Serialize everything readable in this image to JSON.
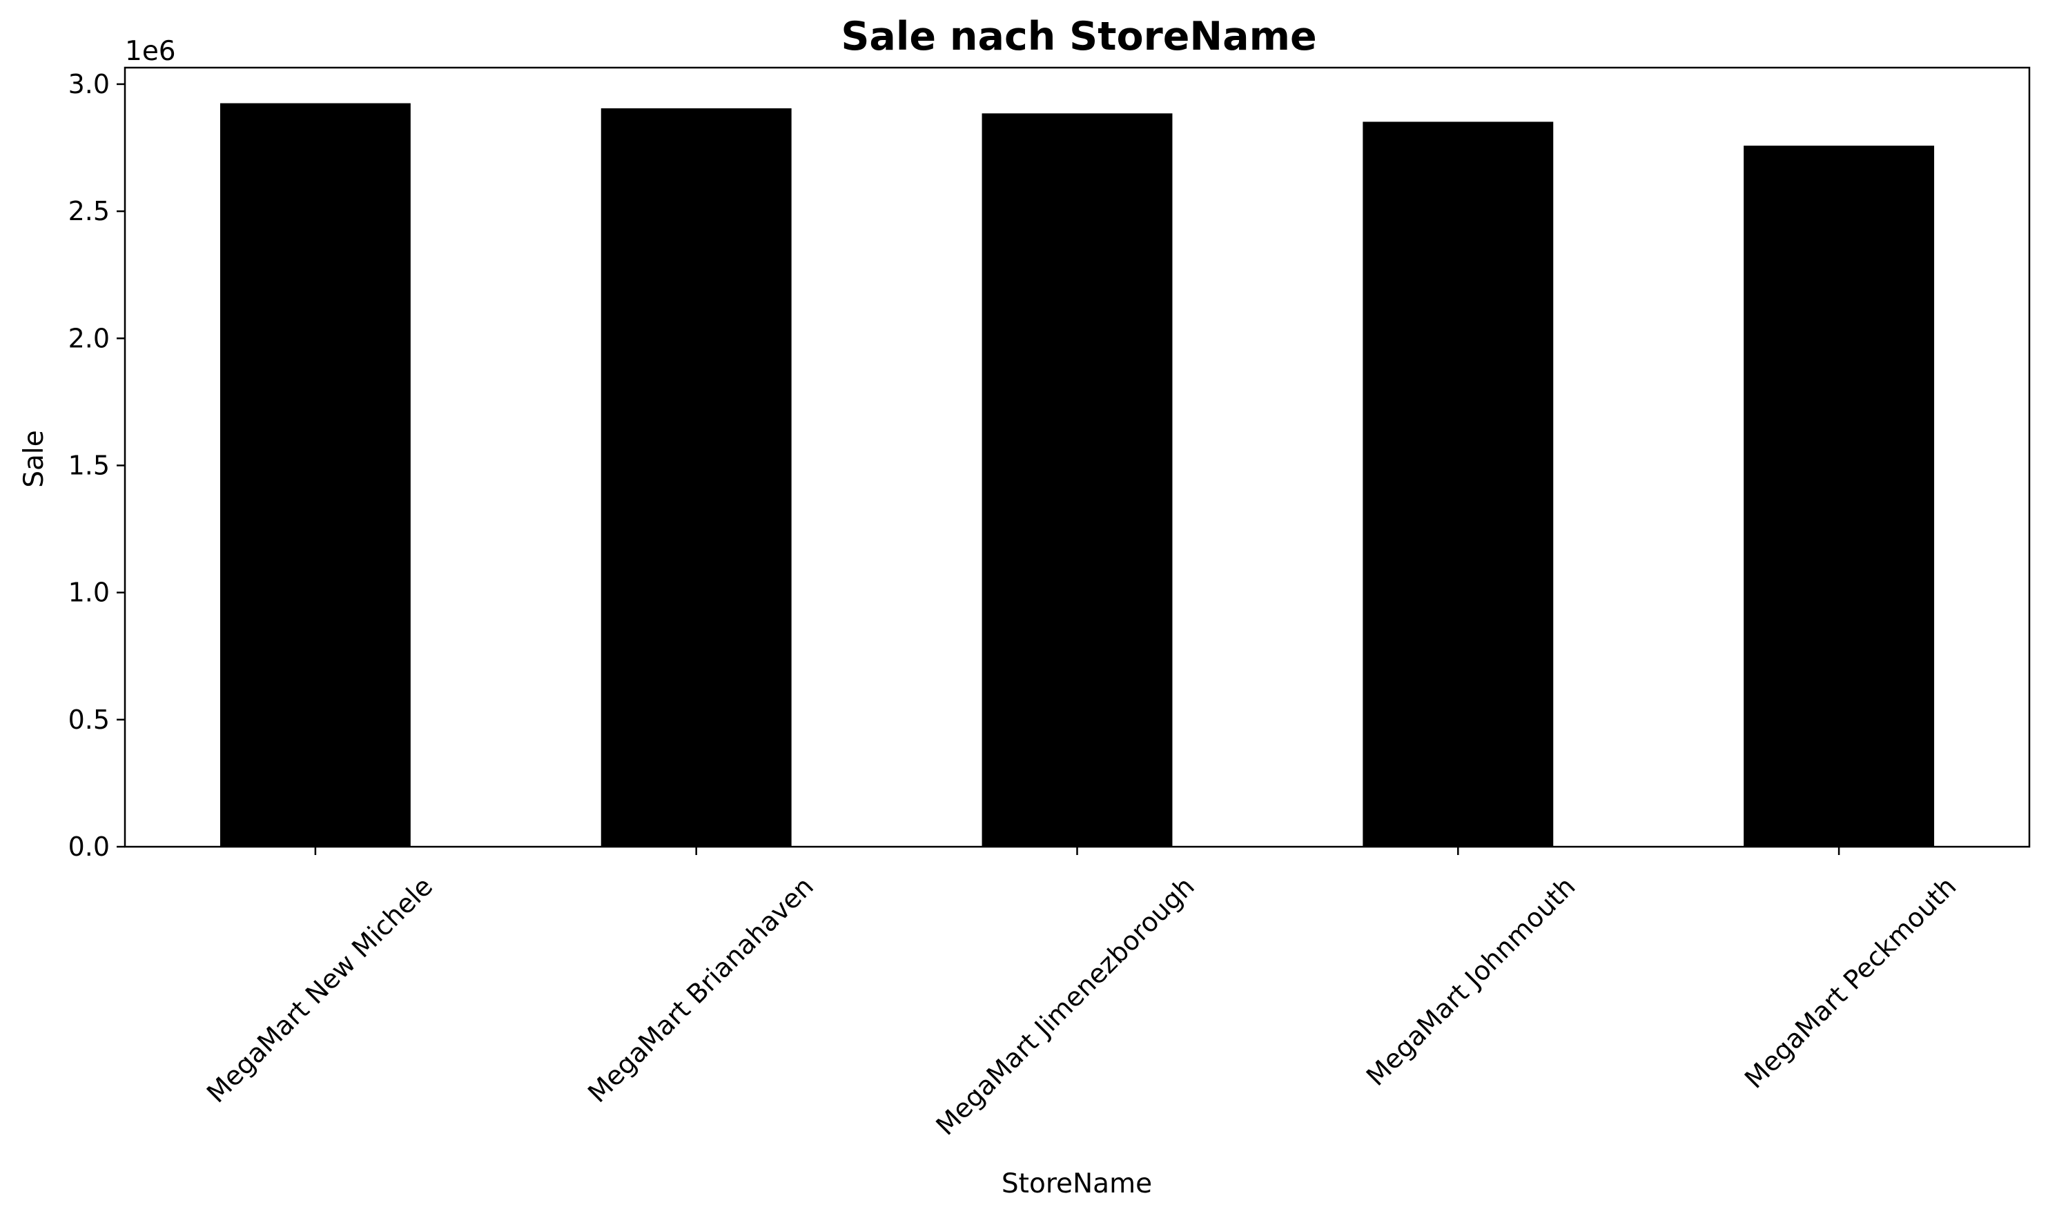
{
  "chart_data": {
    "type": "bar",
    "title": "Sale nach StoreName",
    "xlabel": "StoreName",
    "ylabel": "Sale",
    "y_offset_text": "1e6",
    "categories": [
      "MegaMart New Michele",
      "MegaMart Brianahaven",
      "MegaMart Jimenezborough",
      "MegaMart Johnmouth",
      "MegaMart Peckmouth"
    ],
    "values": [
      2925000,
      2905000,
      2885000,
      2852000,
      2758000
    ],
    "ylim": [
      0,
      3065000
    ],
    "yticks": [
      0,
      500000,
      1000000,
      1500000,
      2000000,
      2500000,
      3000000
    ],
    "ytick_labels": [
      "0.0",
      "0.5",
      "1.0",
      "1.5",
      "2.0",
      "2.5",
      "3.0"
    ],
    "bar_color": "#000000",
    "grid": false,
    "legend": "none"
  }
}
